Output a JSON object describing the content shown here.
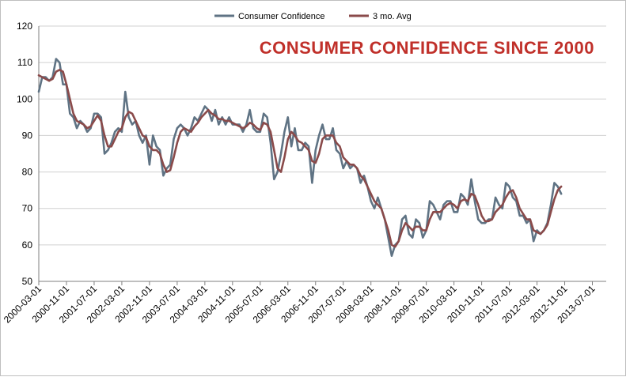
{
  "chart_data": {
    "type": "line",
    "title": "CONSUMER CONFIDENCE SINCE 2000",
    "title_color": "#c0302a",
    "xlabel": "",
    "ylabel": "",
    "ylim": [
      50,
      120
    ],
    "y_ticks": [
      50,
      60,
      70,
      80,
      90,
      100,
      110,
      120
    ],
    "grid": true,
    "legend_position": "top-center",
    "x_start": "2000-03",
    "x_end": "2013-11",
    "x_tick_labels": [
      "2000-03-01",
      "2000-11-01",
      "2001-07-01",
      "2002-03-01",
      "2002-11-01",
      "2003-07-01",
      "2004-03-01",
      "2004-11-01",
      "2005-07-01",
      "2006-03-01",
      "2006-11-01",
      "2007-07-01",
      "2008-03-01",
      "2008-11-01",
      "2009-07-01",
      "2010-03-01",
      "2010-11-01",
      "2011-07-01",
      "2012-03-01",
      "2012-11-01",
      "2013-07-01"
    ],
    "series": [
      {
        "name": "Consumer Confidence",
        "color": "#5f7384",
        "values": [
          102,
          106,
          106,
          105,
          106,
          111,
          110,
          104,
          104,
          96,
          95,
          92,
          94,
          93,
          91,
          92,
          96,
          96,
          95,
          85,
          86,
          88,
          91,
          92,
          91,
          102,
          95,
          93,
          94,
          90,
          88,
          90,
          82,
          90,
          87,
          86,
          79,
          81,
          82,
          89,
          92,
          93,
          92,
          90,
          92,
          95,
          94,
          96,
          98,
          97,
          94,
          97,
          93,
          95,
          93,
          95,
          93,
          93,
          93,
          91,
          93,
          97,
          92,
          91,
          91,
          96,
          95,
          88,
          78,
          80,
          85,
          91,
          95,
          87,
          92,
          86,
          86,
          88,
          87,
          77,
          86,
          90,
          93,
          89,
          89,
          92,
          86,
          85,
          81,
          83,
          81,
          82,
          81,
          77,
          79,
          76,
          72,
          70,
          73,
          70,
          67,
          62,
          57,
          60,
          61,
          67,
          68,
          63,
          62,
          67,
          66,
          62,
          64,
          72,
          71,
          69,
          67,
          71,
          72,
          72,
          69,
          69,
          74,
          73,
          71,
          78,
          72,
          67,
          66,
          66,
          67,
          67,
          73,
          71,
          70,
          77,
          76,
          73,
          72,
          68,
          68,
          66,
          67,
          61,
          64,
          63,
          64,
          66,
          71,
          77,
          76,
          74
        ],
        "markers": false
      },
      {
        "name": "3 mo. Avg",
        "color": "#8a4a4a",
        "values": [
          106.5,
          106,
          105.5,
          105,
          105.5,
          107.5,
          108,
          107.5,
          104,
          100,
          96,
          94,
          93.5,
          93,
          92,
          92.5,
          94,
          95.5,
          94,
          90,
          87,
          87,
          89,
          91,
          92,
          95,
          96.5,
          96,
          94,
          92,
          90,
          89.5,
          87,
          86,
          86,
          85,
          82,
          80,
          80.5,
          84,
          88,
          91,
          92,
          91.5,
          91,
          92.5,
          93.5,
          95,
          96,
          97,
          96,
          95.5,
          94.5,
          94.5,
          94,
          94,
          93.5,
          93,
          92.5,
          92,
          92.5,
          93.5,
          93,
          92,
          91.5,
          93.5,
          93,
          91,
          86,
          81,
          80,
          84,
          89,
          91,
          90,
          88.5,
          88,
          87,
          86,
          83,
          82.5,
          85,
          89,
          90,
          90,
          90,
          88,
          87,
          84,
          83,
          82,
          82,
          81,
          79,
          78,
          76,
          74,
          72,
          71,
          70,
          67,
          64,
          60,
          59.5,
          61,
          64,
          66,
          65,
          64,
          65,
          65,
          64,
          64,
          67,
          69,
          69,
          69,
          70,
          71,
          71.5,
          71,
          70,
          72,
          72.5,
          72,
          74,
          73.5,
          71,
          68,
          66.5,
          66.5,
          67,
          69,
          70,
          71,
          73,
          74.5,
          75,
          73,
          70,
          68.5,
          67,
          67,
          64,
          63.5,
          63,
          64,
          65.5,
          69,
          72.5,
          75,
          76
        ],
        "markers": false
      }
    ]
  }
}
